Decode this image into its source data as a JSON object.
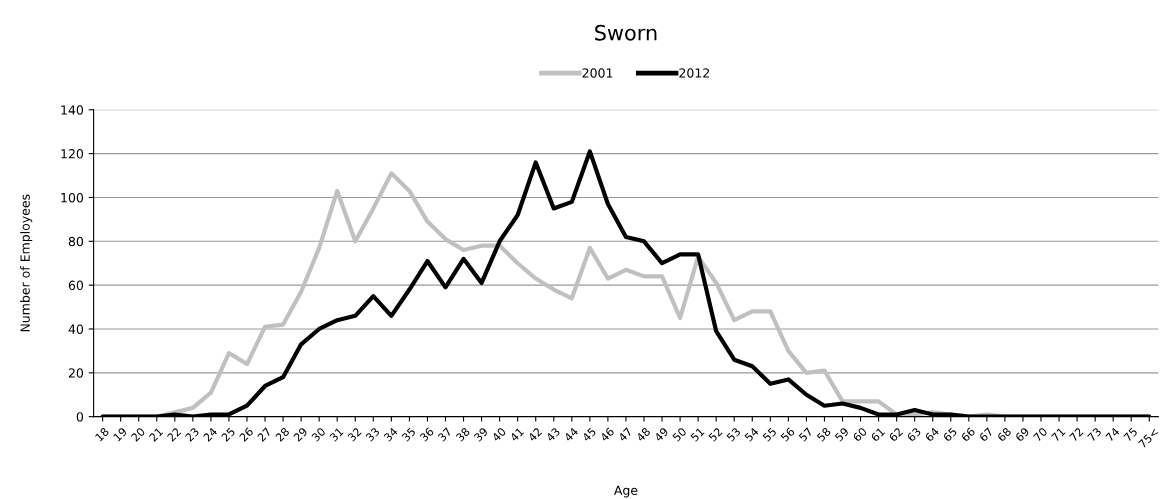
{
  "chart_data": {
    "type": "line",
    "title": "Sworn",
    "xlabel": "Age",
    "ylabel": "Number of Employees",
    "categories": [
      "18",
      "19",
      "20",
      "21",
      "22",
      "23",
      "24",
      "25",
      "26",
      "27",
      "28",
      "29",
      "30",
      "31",
      "32",
      "33",
      "34",
      "35",
      "36",
      "37",
      "38",
      "39",
      "40",
      "41",
      "42",
      "43",
      "44",
      "45",
      "46",
      "47",
      "48",
      "49",
      "50",
      "51",
      "52",
      "53",
      "54",
      "55",
      "56",
      "57",
      "58",
      "59",
      "60",
      "61",
      "62",
      "63",
      "64",
      "65",
      "66",
      "67",
      "68",
      "69",
      "70",
      "71",
      "72",
      "73",
      "74",
      "75",
      "75<"
    ],
    "series": [
      {
        "name": "2001",
        "color": "#c0c0c0",
        "values": [
          0,
          0,
          0,
          0,
          2,
          4,
          11,
          29,
          24,
          41,
          42,
          57,
          77,
          103,
          80,
          95,
          111,
          103,
          89,
          81,
          76,
          78,
          78,
          70,
          63,
          58,
          54,
          77,
          63,
          67,
          64,
          64,
          45,
          73,
          61,
          44,
          48,
          48,
          30,
          20,
          21,
          7,
          7,
          7,
          1,
          1,
          2,
          1,
          0,
          1,
          0,
          0,
          0,
          0,
          0,
          0,
          0,
          0,
          0
        ]
      },
      {
        "name": "2012",
        "color": "#000000",
        "values": [
          0,
          0,
          0,
          0,
          1,
          0,
          1,
          1,
          5,
          14,
          18,
          33,
          40,
          44,
          46,
          55,
          46,
          58,
          71,
          59,
          72,
          61,
          80,
          92,
          116,
          95,
          98,
          121,
          97,
          82,
          80,
          70,
          74,
          74,
          39,
          26,
          23,
          15,
          17,
          10,
          5,
          6,
          4,
          1,
          1,
          3,
          1,
          1,
          0,
          0,
          0,
          0,
          0,
          0,
          0,
          0,
          0,
          0,
          0
        ]
      }
    ],
    "ylim": [
      0,
      140
    ],
    "yticks": [
      0,
      20,
      40,
      60,
      80,
      100,
      120,
      140
    ],
    "grid": "y",
    "legend": "top",
    "marker": "none",
    "line_style": "solid"
  }
}
